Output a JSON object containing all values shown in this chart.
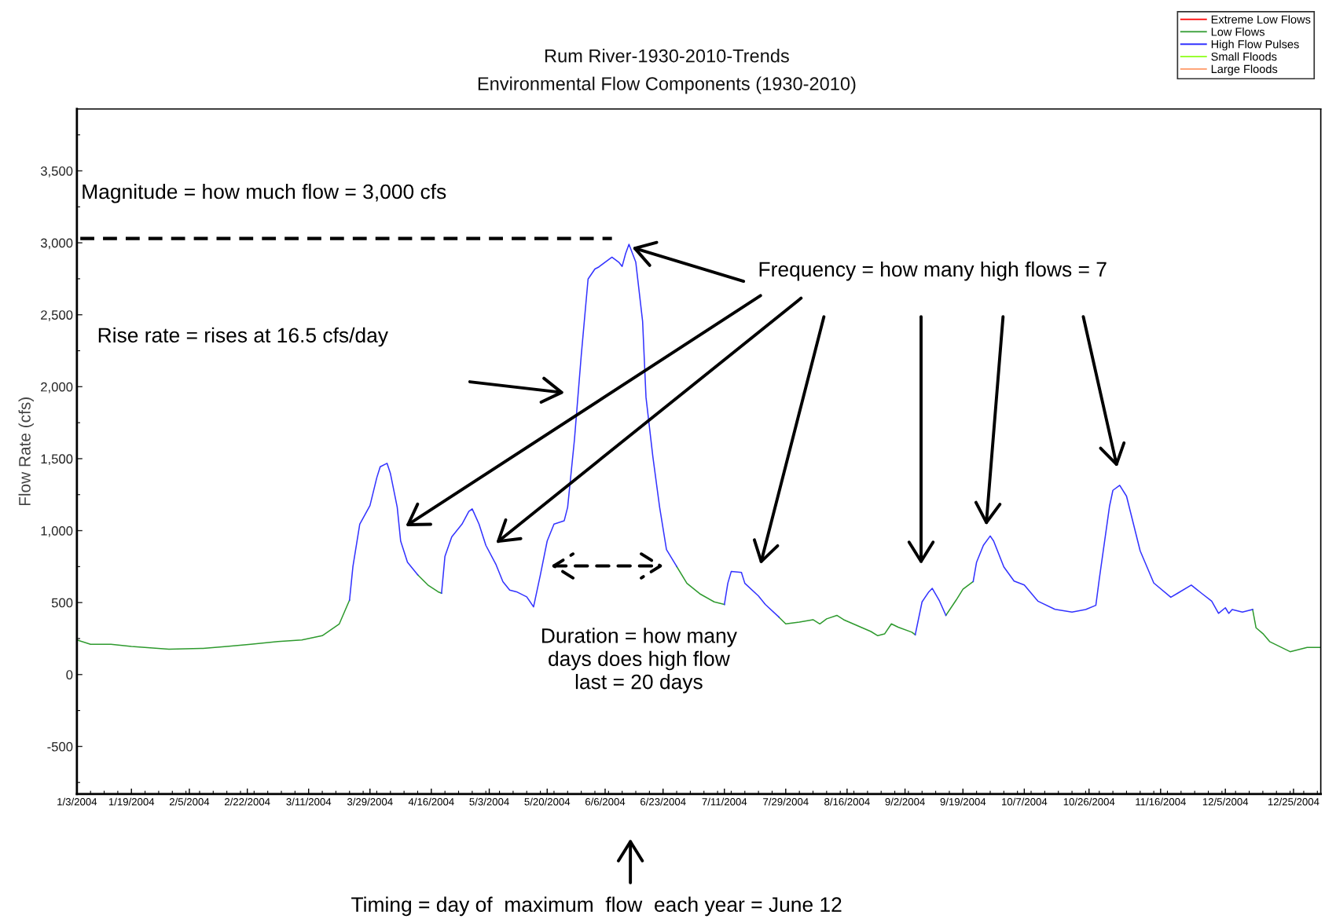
{
  "chart_data": {
    "type": "line",
    "title": "Rum River-1930-2010-Trends",
    "subtitle": "Environmental Flow Components (1930-2010)",
    "ylabel": "Flow Rate (cfs)",
    "xlim": [
      "2004-01-03",
      "2005-01-02"
    ],
    "ylim": [
      -830,
      3930
    ],
    "xticks": [
      {
        "value": "2004-01-03",
        "label": "1/3/2004"
      },
      {
        "value": "2004-01-19",
        "label": "1/19/2004"
      },
      {
        "value": "2004-02-05",
        "label": "2/5/2004"
      },
      {
        "value": "2004-02-22",
        "label": "2/22/2004"
      },
      {
        "value": "2004-03-11",
        "label": "3/11/2004"
      },
      {
        "value": "2004-03-29",
        "label": "3/29/2004"
      },
      {
        "value": "2004-04-16",
        "label": "4/16/2004"
      },
      {
        "value": "2004-05-03",
        "label": "5/3/2004"
      },
      {
        "value": "2004-05-20",
        "label": "5/20/2004"
      },
      {
        "value": "2004-06-06",
        "label": "6/6/2004"
      },
      {
        "value": "2004-06-23",
        "label": "6/23/2004"
      },
      {
        "value": "2004-07-11",
        "label": "7/11/2004"
      },
      {
        "value": "2004-07-29",
        "label": "7/29/2004"
      },
      {
        "value": "2004-08-16",
        "label": "8/16/2004"
      },
      {
        "value": "2004-09-02",
        "label": "9/2/2004"
      },
      {
        "value": "2004-09-19",
        "label": "9/19/2004"
      },
      {
        "value": "2004-10-07",
        "label": "10/7/2004"
      },
      {
        "value": "2004-10-26",
        "label": "10/26/2004"
      },
      {
        "value": "2004-11-16",
        "label": "11/16/2004"
      },
      {
        "value": "2004-12-05",
        "label": "12/5/2004"
      },
      {
        "value": "2004-12-25",
        "label": "12/25/2004"
      }
    ],
    "yticks": [
      -500,
      0,
      500,
      {
        "value": 1000,
        "label": "1,000"
      },
      {
        "value": 1500,
        "label": "1,500"
      },
      {
        "value": 2000,
        "label": "2,000"
      },
      {
        "value": 2500,
        "label": "2,500"
      },
      {
        "value": 3000,
        "label": "3,000"
      },
      {
        "value": 3500,
        "label": "3,500"
      }
    ],
    "grid": false,
    "legend": "top right",
    "marker": "none",
    "line_style": "solid",
    "series": [
      {
        "name": "Extreme Low Flows",
        "color": "#ff0000"
      },
      {
        "name": "Low Flows",
        "color": "#2e9a2e",
        "x": [
          "2004-01-03",
          "2004-01-07",
          "2004-01-13",
          "2004-01-19",
          "2004-01-30",
          "2004-02-09",
          "2004-02-16",
          "2004-02-23",
          "2004-03-02",
          "2004-03-09",
          "2004-03-15",
          "2004-03-20",
          "2004-03-23",
          "2004-03-30",
          "2004-04-12",
          "2004-04-15",
          "2004-04-18",
          "2004-04-19",
          "2004-05-15",
          "2004-06-27",
          "2004-06-30",
          "2004-07-04",
          "2004-07-08",
          "2004-07-11",
          "2004-07-18",
          "2004-07-27",
          "2004-07-29",
          "2004-08-02",
          "2004-08-06",
          "2004-08-08",
          "2004-08-10",
          "2004-08-13",
          "2004-08-15",
          "2004-08-19",
          "2004-08-23",
          "2004-08-25",
          "2004-08-27",
          "2004-08-29",
          "2004-08-31",
          "2004-09-04",
          "2004-09-05",
          "2004-09-08",
          "2004-09-14",
          "2004-09-17",
          "2004-09-19",
          "2004-09-22",
          "2004-11-01",
          "2004-12-13",
          "2004-12-14",
          "2004-12-16",
          "2004-12-18",
          "2004-12-24",
          "2004-12-29",
          "2005-01-02"
        ],
        "values": [
          240,
          210,
          210,
          195,
          176,
          182,
          195,
          210,
          229,
          240,
          270,
          352,
          517,
          null,
          693,
          622,
          575,
          565,
          null,
          751,
          634,
          558,
          505,
          487,
          null,
          399,
          352,
          364,
          381,
          352,
          387,
          411,
          381,
          340,
          299,
          270,
          282,
          352,
          329,
          294,
          276,
          null,
          411,
          517,
          593,
          646,
          null,
          452,
          325,
          285,
          229,
          159,
          188,
          188
        ]
      },
      {
        "name": "High Flow Pulses",
        "color": "#3333ff",
        "x": [
          "2004-03-23",
          "2004-03-24",
          "2004-03-26",
          "2004-03-29",
          "2004-03-31",
          "2004-04-01",
          "2004-04-03",
          "2004-04-04",
          "2004-04-06",
          "2004-04-07",
          "2004-04-09",
          "2004-04-12",
          "2004-04-15",
          "2004-04-19",
          "2004-04-20",
          "2004-04-22",
          "2004-04-25",
          "2004-04-27",
          "2004-04-28",
          "2004-04-30",
          "2004-05-02",
          "2004-05-05",
          "2004-05-07",
          "2004-05-09",
          "2004-05-11",
          "2004-05-14",
          "2004-05-16",
          "2004-05-18",
          "2004-05-20",
          "2004-05-22",
          "2004-05-25",
          "2004-05-26",
          "2004-05-28",
          "2004-05-30",
          "2004-06-01",
          "2004-06-03",
          "2004-06-04",
          "2004-06-07",
          "2004-06-08",
          "2004-06-10",
          "2004-06-11",
          "2004-06-12",
          "2004-06-13",
          "2004-06-15",
          "2004-06-17",
          "2004-06-18",
          "2004-06-20",
          "2004-06-22",
          "2004-06-24",
          "2004-06-27",
          "2004-07-01",
          "2004-07-11",
          "2004-07-12",
          "2004-07-13",
          "2004-07-16",
          "2004-07-17",
          "2004-07-21",
          "2004-07-23",
          "2004-07-27",
          "2004-08-01",
          "2004-09-05",
          "2004-09-07",
          "2004-09-09",
          "2004-09-10",
          "2004-09-12",
          "2004-09-14",
          "2004-09-18",
          "2004-09-22",
          "2004-09-23",
          "2004-09-25",
          "2004-09-27",
          "2004-09-28",
          "2004-10-01",
          "2004-10-04",
          "2004-10-07",
          "2004-10-11",
          "2004-10-16",
          "2004-10-21",
          "2004-10-25",
          "2004-10-28",
          "2004-10-29",
          "2004-11-01",
          "2004-11-02",
          "2004-11-04",
          "2004-11-06",
          "2004-11-10",
          "2004-11-14",
          "2004-11-19",
          "2004-11-21",
          "2004-11-25",
          "2004-11-28",
          "2004-12-01",
          "2004-12-03",
          "2004-12-05",
          "2004-12-06",
          "2004-12-07",
          "2004-12-10",
          "2004-12-13"
        ],
        "values": [
          517,
          751,
          1045,
          1174,
          1368,
          1444,
          1468,
          1397,
          1162,
          928,
          781,
          693,
          null,
          565,
          822,
          957,
          1045,
          1133,
          1151,
          1045,
          898,
          763,
          646,
          587,
          575,
          540,
          470,
          693,
          928,
          1045,
          1069,
          1162,
          1632,
          2219,
          2748,
          2818,
          2830,
          2883,
          2900,
          2865,
          2836,
          2924,
          2990,
          2865,
          2454,
          1926,
          1515,
          1162,
          869,
          751,
          null,
          487,
          634,
          716,
          710,
          634,
          546,
          487,
          399,
          null,
          276,
          505,
          575,
          599,
          517,
          411,
          null,
          646,
          781,
          898,
          963,
          928,
          748,
          650,
          622,
          510,
          453,
          434,
          452,
          481,
          663,
          1168,
          1280,
          1315,
          1239,
          860,
          636,
          537,
          565,
          622,
          565,
          510,
          425,
          464,
          425,
          452,
          434,
          452
        ]
      },
      {
        "name": "Small Floods",
        "color": "#99ff33"
      },
      {
        "name": "Large Floods",
        "color": "#ff9966"
      },
      {
        "type": "line",
        "color": "#000000",
        "line_style": "dashed",
        "x": [
          "2004-01-04",
          "2004-06-08"
        ],
        "values": [
          3030,
          3030
        ]
      }
    ],
    "annotations": [
      "Magnitude = how much flow = 3,000 cfs",
      "Frequency = how many high flows = 7",
      "Rise rate = rises at 16.5 cfs/day",
      "Duration = how many\ndays does high flow\nlast = 20 days",
      "Timing = day of  maximum  flow  each year = June 12"
    ]
  }
}
